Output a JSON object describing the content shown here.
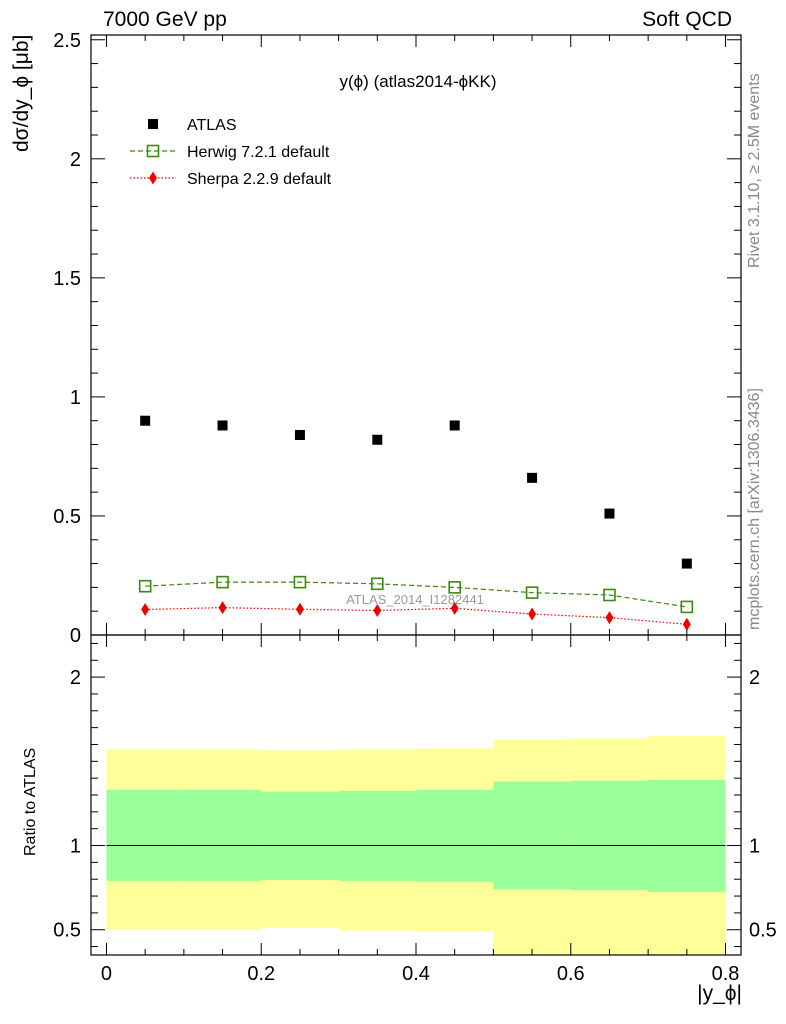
{
  "header": {
    "left": "7000 GeV pp",
    "right": "Soft QCD"
  },
  "side_labels": {
    "rivet": "Rivet 3.1.10, ≥ 2.5M events",
    "mcplots": "mcplots.cern.ch [arXiv:1306.3436]"
  },
  "chart_data": {
    "type": "scatter",
    "title": "y(ϕ) (atlas2014-ϕKK)",
    "watermark": "ATLAS_2014_I1282441",
    "xlabel": "|y_ϕ|",
    "ylabel": "dσ/dy_ϕ [μb]",
    "ratio_ylabel": "Ratio to ATLAS",
    "xlim": [
      -0.02,
      0.82
    ],
    "ylim": [
      0,
      2.52
    ],
    "ratio_ylim": [
      0.35,
      2.25
    ],
    "x_ticks": [
      "0",
      "0.2",
      "0.4",
      "0.6",
      "0.8"
    ],
    "y_ticks": [
      "0",
      "0.5",
      "1",
      "1.5",
      "2",
      "2.5"
    ],
    "ratio_ticks": [
      "0.5",
      "1",
      "2"
    ],
    "legend_position": "top-left",
    "x": [
      0.05,
      0.15,
      0.25,
      0.35,
      0.45,
      0.55,
      0.65,
      0.75
    ],
    "bin_edges": [
      0.0,
      0.1,
      0.2,
      0.3,
      0.4,
      0.5,
      0.6,
      0.7,
      0.8
    ],
    "series": [
      {
        "name": "ATLAS",
        "color": "#000000",
        "marker": "square",
        "values": [
          0.9,
          0.88,
          0.84,
          0.82,
          0.88,
          0.66,
          0.51,
          0.3
        ]
      },
      {
        "name": "Herwig 7.2.1 default",
        "color": "#3a8a10",
        "marker": "open-square",
        "values": [
          0.205,
          0.222,
          0.222,
          0.215,
          0.2,
          0.178,
          0.168,
          0.118
        ]
      },
      {
        "name": "Sherpa 2.2.9 default",
        "color": "#ee0000",
        "marker": "diamond",
        "values": [
          0.107,
          0.115,
          0.108,
          0.103,
          0.112,
          0.088,
          0.073,
          0.045
        ]
      }
    ],
    "ratio_bands": {
      "inner_color": "#99ff99",
      "outer_color": "#ffff99",
      "inner_low": [
        0.79,
        0.79,
        0.795,
        0.79,
        0.785,
        0.74,
        0.735,
        0.725
      ],
      "inner_high": [
        1.33,
        1.33,
        1.32,
        1.325,
        1.33,
        1.38,
        1.385,
        1.39
      ],
      "outer_low": [
        0.5,
        0.5,
        0.51,
        0.495,
        0.49,
        0.35,
        0.35,
        0.35
      ],
      "outer_high": [
        1.57,
        1.57,
        1.565,
        1.57,
        1.575,
        1.63,
        1.635,
        1.65
      ]
    }
  }
}
